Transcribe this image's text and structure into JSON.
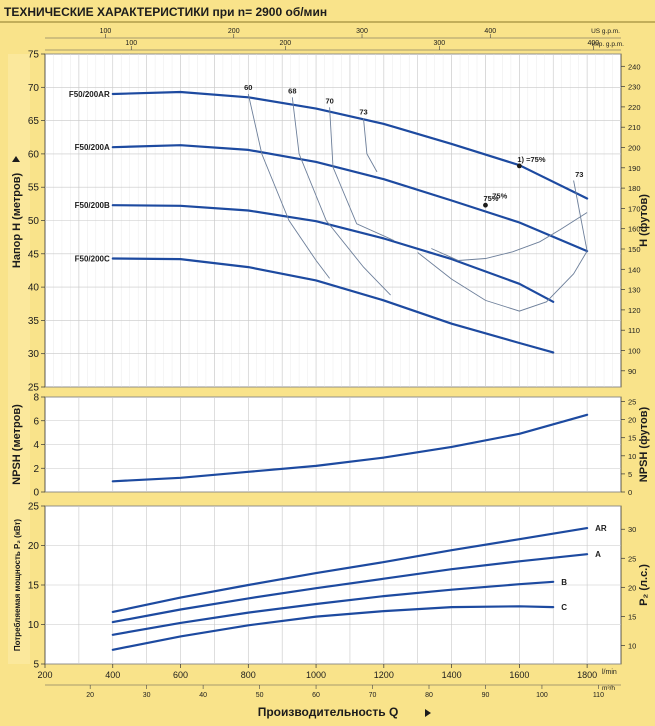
{
  "title": "ТЕХНИЧЕСКИЕ ХАРАКТЕРИСТИКИ при n= 2900 об/мин",
  "colors": {
    "curve": "#1d4aa0",
    "plot_bg": "#ffffff",
    "page_bg": "#f9e38a",
    "grid": "#c8c8c8",
    "text": "#1c1c1c"
  },
  "top_axes": {
    "us_label": "US g.p.m.",
    "us_ticks": [
      100,
      200,
      300,
      400
    ],
    "imp_label": "imp. g.p.m.",
    "imp_ticks": [
      100,
      200,
      300,
      400
    ]
  },
  "bottom_axes": {
    "lmin_label": "l/min",
    "lmin_ticks": [
      200,
      400,
      600,
      800,
      1000,
      1200,
      1400,
      1600,
      1800
    ],
    "m3h_label": "m³/h",
    "m3h_ticks": [
      20,
      30,
      40,
      50,
      60,
      70,
      80,
      90,
      100,
      110
    ],
    "xlabel": "Производительность  Q"
  },
  "chart_data": [
    {
      "type": "line",
      "ylabel_left": "Напор  H   (метров)",
      "ylabel_right": "H   (футов)",
      "ylim": [
        25,
        75
      ],
      "yticks": [
        25,
        30,
        35,
        40,
        45,
        50,
        55,
        60,
        65,
        70,
        75
      ],
      "ylim_right": [
        82.02,
        246.06
      ],
      "yticks_right": [
        90,
        100,
        110,
        120,
        130,
        140,
        150,
        160,
        170,
        180,
        190,
        200,
        210,
        220,
        230,
        240
      ],
      "xlim": [
        200,
        1900
      ],
      "xgrid": [
        300,
        400,
        500,
        600,
        700,
        800,
        900,
        1000,
        1100,
        1200,
        1300,
        1400,
        1500,
        1600,
        1700,
        1800
      ],
      "series": [
        {
          "name": "F50/200AR",
          "x": [
            400,
            600,
            800,
            1000,
            1200,
            1400,
            1600,
            1800
          ],
          "y": [
            69.0,
            69.3,
            68.5,
            66.8,
            64.5,
            61.5,
            58.3,
            53.3
          ]
        },
        {
          "name": "F50/200A",
          "x": [
            400,
            600,
            800,
            1000,
            1200,
            1400,
            1600,
            1800
          ],
          "y": [
            61.0,
            61.3,
            60.6,
            58.8,
            56.2,
            53.0,
            49.7,
            45.4
          ]
        },
        {
          "name": "F50/200B",
          "x": [
            400,
            600,
            800,
            1000,
            1200,
            1400,
            1600,
            1700
          ],
          "y": [
            52.3,
            52.2,
            51.5,
            49.9,
            47.3,
            44.2,
            40.5,
            37.8
          ]
        },
        {
          "name": "F50/200C",
          "x": [
            400,
            600,
            800,
            1000,
            1200,
            1400,
            1600,
            1700
          ],
          "y": [
            44.3,
            44.2,
            43.0,
            41.0,
            38.0,
            34.5,
            31.6,
            30.2
          ]
        }
      ],
      "efficiency_curves": [
        {
          "label": "60",
          "x": [
            800,
            840,
            920,
            1000,
            1040
          ],
          "y": [
            69.0,
            60.0,
            50.0,
            44.0,
            41.3
          ]
        },
        {
          "label": "68",
          "x": [
            930,
            950,
            1030,
            1140,
            1220
          ],
          "y": [
            68.5,
            60.0,
            50.0,
            43.0,
            38.8
          ]
        },
        {
          "label": "70",
          "x": [
            1040,
            1050,
            1120,
            1230
          ],
          "y": [
            67.0,
            58.0,
            49.5,
            47.0
          ]
        },
        {
          "label": "73",
          "x": [
            1140,
            1150,
            1180
          ],
          "y": [
            65.3,
            60.0,
            57.3
          ]
        },
        {
          "label": "75%",
          "x": [
            1340,
            1420,
            1500,
            1580,
            1660,
            1720,
            1800
          ],
          "y": [
            45.8,
            44.0,
            44.3,
            45.3,
            46.8,
            48.6,
            51.2
          ]
        },
        {
          "label": "73",
          "x": [
            1300,
            1400,
            1500,
            1600,
            1680,
            1760,
            1800
          ],
          "y": [
            45.2,
            41.2,
            38.0,
            36.4,
            37.8,
            42.0,
            45.4
          ]
        },
        {
          "label": "",
          "x": [
            1760,
            1800
          ],
          "y": [
            56.0,
            45.4
          ]
        },
        {
          "label": "1) =75%",
          "x": [
            1600,
            1600
          ],
          "y": [
            58.2,
            58.2
          ]
        },
        {
          "label": "75%",
          "x": [
            1500,
            1500
          ],
          "y": [
            52.3,
            52.3
          ]
        }
      ]
    },
    {
      "type": "line",
      "ylabel_left": "NPSH   (метров)",
      "ylabel_right": "NPSH   (футов)",
      "ylim": [
        0,
        8
      ],
      "yticks": [
        0,
        2,
        4,
        6,
        8
      ],
      "ylim_right": [
        0,
        26.25
      ],
      "yticks_right": [
        0,
        5,
        10,
        15,
        20,
        25
      ],
      "xlim": [
        200,
        1900
      ],
      "series": [
        {
          "name": "NPSH",
          "x": [
            400,
            600,
            800,
            1000,
            1200,
            1400,
            1600,
            1800
          ],
          "y": [
            0.9,
            1.2,
            1.7,
            2.2,
            2.9,
            3.8,
            4.9,
            6.5
          ]
        }
      ]
    },
    {
      "type": "line",
      "ylabel_left": "Потребляемая мощность  P₂  (кВт)",
      "ylabel_right": "P₂   (л.с.)",
      "ylim": [
        5,
        25
      ],
      "yticks": [
        5,
        10,
        15,
        20,
        25
      ],
      "ylim_right": [
        6.8,
        34.0
      ],
      "yticks_right": [
        10,
        15,
        20,
        25,
        30
      ],
      "xlim": [
        200,
        1900
      ],
      "series": [
        {
          "name": "AR",
          "x": [
            400,
            600,
            800,
            1000,
            1200,
            1400,
            1600,
            1800
          ],
          "y": [
            11.6,
            13.4,
            15.0,
            16.5,
            17.9,
            19.4,
            20.8,
            22.2
          ]
        },
        {
          "name": "A",
          "x": [
            400,
            600,
            800,
            1000,
            1200,
            1400,
            1600,
            1800
          ],
          "y": [
            10.3,
            11.9,
            13.3,
            14.6,
            15.8,
            17.0,
            18.0,
            18.9
          ]
        },
        {
          "name": "B",
          "x": [
            400,
            600,
            800,
            1000,
            1200,
            1400,
            1600,
            1700
          ],
          "y": [
            8.7,
            10.2,
            11.5,
            12.6,
            13.6,
            14.4,
            15.1,
            15.4
          ]
        },
        {
          "name": "C",
          "x": [
            400,
            600,
            800,
            1000,
            1200,
            1400,
            1600,
            1700
          ],
          "y": [
            6.8,
            8.5,
            9.9,
            11.0,
            11.7,
            12.2,
            12.3,
            12.2
          ]
        }
      ]
    }
  ]
}
